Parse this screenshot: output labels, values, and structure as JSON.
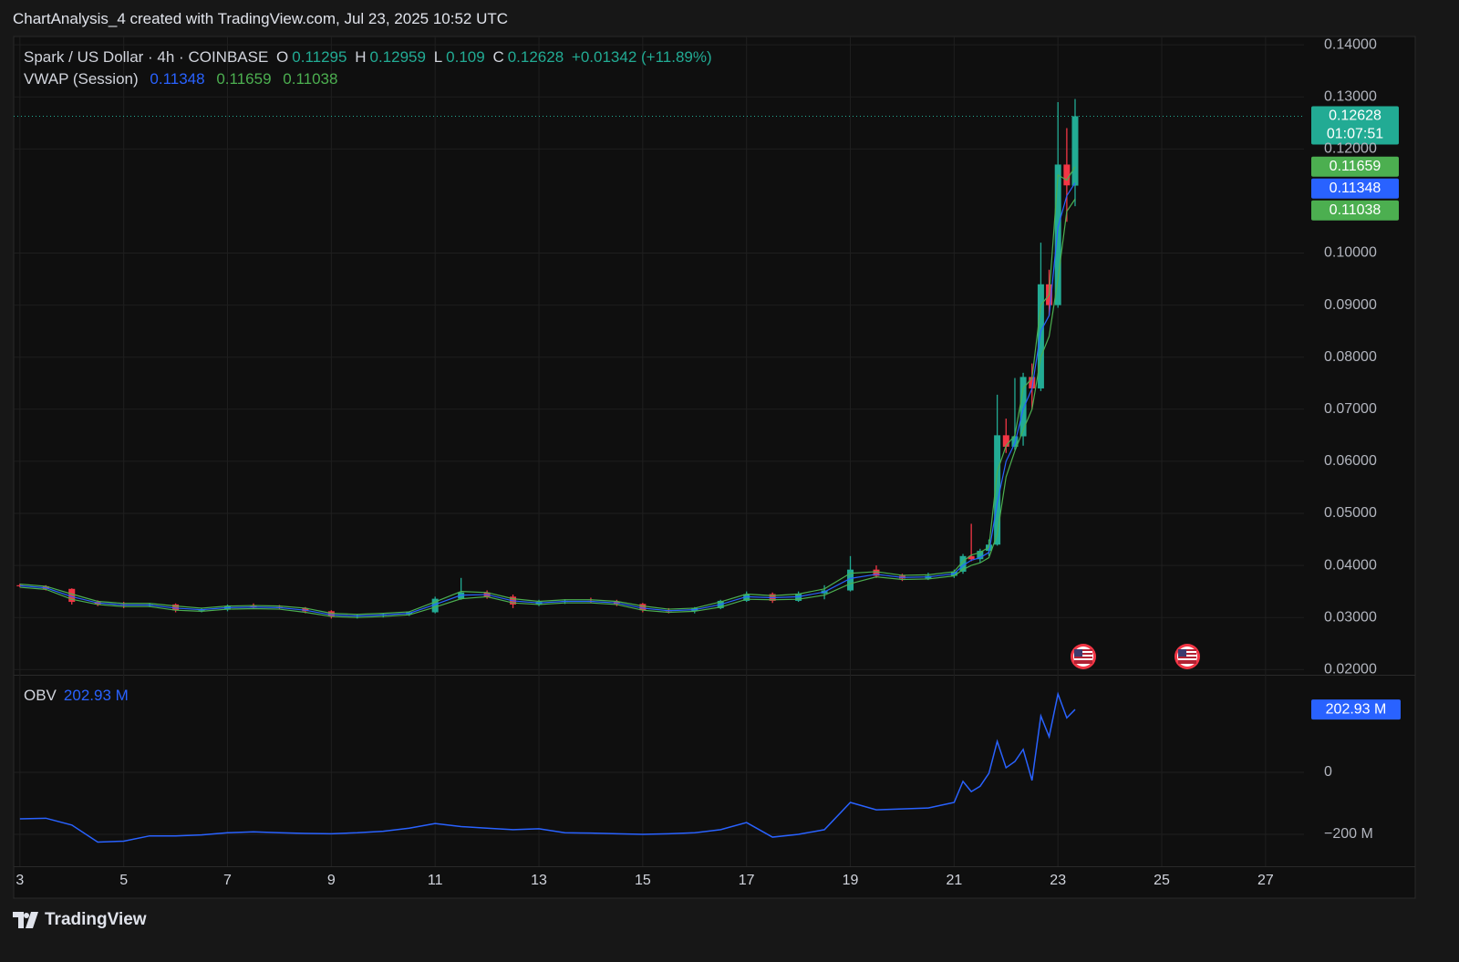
{
  "header": {
    "title": "ChartAnalysis_4 created with TradingView.com, Jul 23, 2025 10:52 UTC"
  },
  "footer": {
    "brand": "TradingView"
  },
  "chart_data": [
    {
      "type": "candlestick",
      "symbol": "Spark / US Dollar · 4h · COINBASE",
      "ohlc_labels": [
        "O",
        "H",
        "L",
        "C"
      ],
      "change": "+0.01342 (+11.89%)",
      "countdown": "01:07:51",
      "up_color": "#22ab94",
      "down_color": "#f23645",
      "x": [
        3,
        3.5,
        4,
        4.5,
        5,
        5.5,
        6,
        6.5,
        7,
        7.5,
        8,
        8.5,
        9,
        9.5,
        10,
        10.5,
        11,
        11.5,
        12,
        12.5,
        13,
        13.5,
        14,
        14.5,
        15,
        15.5,
        16,
        16.5,
        17,
        17.5,
        18,
        18.5,
        19,
        19.5,
        20,
        20.5,
        21,
        21.17,
        21.33,
        21.5,
        21.67,
        21.83,
        22,
        22.17,
        22.33,
        22.5,
        22.67,
        22.83,
        23,
        23.17,
        23.33
      ],
      "open": [
        0.0362,
        0.036,
        0.0355,
        0.033,
        0.0325,
        0.0323,
        0.0325,
        0.0314,
        0.0315,
        0.0322,
        0.032,
        0.0318,
        0.0312,
        0.0302,
        0.0304,
        0.0306,
        0.031,
        0.0336,
        0.0348,
        0.034,
        0.0325,
        0.033,
        0.0332,
        0.033,
        0.0326,
        0.0314,
        0.0312,
        0.0318,
        0.0332,
        0.0345,
        0.0332,
        0.0346,
        0.0352,
        0.0392,
        0.038,
        0.0375,
        0.038,
        0.0388,
        0.0418,
        0.0412,
        0.0428,
        0.044,
        0.065,
        0.0628,
        0.0648,
        0.0762,
        0.074,
        0.094,
        0.09,
        0.117,
        0.11295
      ],
      "high": [
        0.0365,
        0.0362,
        0.0356,
        0.0333,
        0.033,
        0.0328,
        0.0327,
        0.0318,
        0.0325,
        0.0327,
        0.0324,
        0.032,
        0.0314,
        0.0306,
        0.0308,
        0.0312,
        0.034,
        0.0376,
        0.0352,
        0.0344,
        0.0334,
        0.0335,
        0.0338,
        0.0334,
        0.0328,
        0.0318,
        0.032,
        0.0334,
        0.035,
        0.0348,
        0.035,
        0.0362,
        0.0418,
        0.04,
        0.0384,
        0.0386,
        0.0392,
        0.0422,
        0.048,
        0.0432,
        0.045,
        0.0728,
        0.0682,
        0.076,
        0.077,
        0.0788,
        0.102,
        0.0968,
        0.129,
        0.124,
        0.12959
      ],
      "low": [
        0.0358,
        0.0352,
        0.0325,
        0.0322,
        0.0318,
        0.032,
        0.031,
        0.031,
        0.0312,
        0.0318,
        0.0316,
        0.0308,
        0.0298,
        0.0298,
        0.03,
        0.0303,
        0.0308,
        0.0334,
        0.0336,
        0.0318,
        0.0322,
        0.0326,
        0.0328,
        0.0322,
        0.031,
        0.0308,
        0.0308,
        0.0316,
        0.033,
        0.0328,
        0.033,
        0.0335,
        0.035,
        0.0376,
        0.037,
        0.0372,
        0.0376,
        0.0384,
        0.0408,
        0.0406,
        0.0418,
        0.0438,
        0.0616,
        0.0622,
        0.063,
        0.07,
        0.0735,
        0.088,
        0.0895,
        0.106,
        0.109
      ],
      "close": [
        0.036,
        0.0355,
        0.033,
        0.0325,
        0.0323,
        0.0325,
        0.0314,
        0.0315,
        0.0322,
        0.032,
        0.0318,
        0.0312,
        0.0302,
        0.0304,
        0.0306,
        0.031,
        0.0336,
        0.0348,
        0.034,
        0.0325,
        0.033,
        0.0332,
        0.033,
        0.0326,
        0.0314,
        0.0312,
        0.0318,
        0.0332,
        0.0345,
        0.0332,
        0.0346,
        0.0352,
        0.0392,
        0.038,
        0.0375,
        0.038,
        0.0388,
        0.0418,
        0.0412,
        0.0428,
        0.044,
        0.065,
        0.0628,
        0.0648,
        0.0762,
        0.074,
        0.094,
        0.09,
        0.117,
        0.113,
        0.12628
      ],
      "overlay": {
        "name": "VWAP (Session)",
        "series": [
          {
            "color": "#2962ff",
            "values": [
              0.0361,
              0.0357,
              0.034,
              0.0328,
              0.0324,
              0.0324,
              0.0318,
              0.0315,
              0.0319,
              0.032,
              0.0319,
              0.0314,
              0.0305,
              0.0303,
              0.0305,
              0.0308,
              0.0325,
              0.0343,
              0.0344,
              0.0332,
              0.0328,
              0.0331,
              0.0331,
              0.0328,
              0.0318,
              0.0313,
              0.0315,
              0.0325,
              0.034,
              0.0338,
              0.034,
              0.0349,
              0.0375,
              0.0383,
              0.0377,
              0.0378,
              0.0384,
              0.04,
              0.041,
              0.0415,
              0.0425,
              0.052,
              0.06,
              0.0635,
              0.07,
              0.074,
              0.085,
              0.088,
              0.105,
              0.111,
              0.11348
            ]
          },
          {
            "color": "#4caf50",
            "values": [
              0.0364,
              0.036,
              0.0345,
              0.0331,
              0.0327,
              0.0327,
              0.0322,
              0.0318,
              0.0322,
              0.0323,
              0.0322,
              0.0318,
              0.0308,
              0.0306,
              0.0308,
              0.0311,
              0.033,
              0.035,
              0.0348,
              0.0336,
              0.0331,
              0.0334,
              0.0334,
              0.0331,
              0.0322,
              0.0316,
              0.0318,
              0.033,
              0.0345,
              0.0342,
              0.0345,
              0.0355,
              0.0385,
              0.0388,
              0.0381,
              0.0382,
              0.0388,
              0.0408,
              0.042,
              0.0425,
              0.0435,
              0.058,
              0.063,
              0.065,
              0.074,
              0.076,
              0.09,
              0.092,
              0.115,
              0.114,
              0.11659
            ]
          },
          {
            "color": "#4caf50",
            "values": [
              0.0358,
              0.0354,
              0.0335,
              0.0325,
              0.0321,
              0.0321,
              0.0314,
              0.0312,
              0.0316,
              0.0317,
              0.0316,
              0.031,
              0.0302,
              0.03,
              0.0302,
              0.0305,
              0.032,
              0.0336,
              0.034,
              0.0328,
              0.0325,
              0.0328,
              0.0328,
              0.0325,
              0.0314,
              0.031,
              0.0312,
              0.032,
              0.0335,
              0.0334,
              0.0335,
              0.0343,
              0.0365,
              0.0378,
              0.0373,
              0.0374,
              0.038,
              0.0392,
              0.04,
              0.0405,
              0.0415,
              0.046,
              0.057,
              0.062,
              0.066,
              0.07,
              0.08,
              0.084,
              0.095,
              0.108,
              0.11038
            ]
          }
        ]
      },
      "xlim": [
        2.88,
        27.74
      ],
      "xticks": [
        3,
        5,
        7,
        9,
        11,
        13,
        15,
        17,
        19,
        21,
        23,
        25,
        27
      ],
      "ylim": [
        0.019,
        0.1416
      ],
      "yticks": [
        {
          "value": 0.02,
          "label": "0.02000"
        },
        {
          "value": 0.03,
          "label": "0.03000"
        },
        {
          "value": 0.04,
          "label": "0.04000"
        },
        {
          "value": 0.05,
          "label": "0.05000"
        },
        {
          "value": 0.06,
          "label": "0.06000"
        },
        {
          "value": 0.07,
          "label": "0.07000"
        },
        {
          "value": 0.08,
          "label": "0.08000"
        },
        {
          "value": 0.09,
          "label": "0.09000"
        },
        {
          "value": 0.1,
          "label": "0.10000"
        },
        {
          "value": 0.12,
          "label": "0.12000"
        },
        {
          "value": 0.13,
          "label": "0.13000"
        },
        {
          "value": 0.14,
          "label": "0.14000"
        }
      ],
      "grid": true
    },
    {
      "type": "line",
      "title": "OBV",
      "x": [
        3,
        3.5,
        4,
        4.5,
        5,
        5.5,
        6,
        6.5,
        7,
        7.5,
        8,
        8.5,
        9,
        9.5,
        10,
        10.5,
        11,
        11.5,
        12,
        12.5,
        13,
        13.5,
        14,
        14.5,
        15,
        15.5,
        16,
        16.5,
        17,
        17.5,
        18,
        18.5,
        19,
        19.5,
        20,
        20.5,
        21,
        21.17,
        21.33,
        21.5,
        21.67,
        21.83,
        22,
        22.17,
        22.33,
        22.5,
        22.67,
        22.83,
        23,
        23.17,
        23.33
      ],
      "series": [
        {
          "color": "#2962ff",
          "values": [
            -150,
            -148,
            -170,
            -225,
            -222,
            -205,
            -205,
            -202,
            -195,
            -192,
            -195,
            -197,
            -198,
            -195,
            -190,
            -180,
            -165,
            -175,
            -180,
            -185,
            -182,
            -195,
            -196,
            -198,
            -200,
            -198,
            -195,
            -185,
            -162,
            -209,
            -200,
            -185,
            -97,
            -121,
            -118,
            -115,
            -97,
            -29,
            -62,
            -45,
            -3,
            100,
            15,
            35,
            74,
            -26,
            182,
            115,
            253,
            176,
            202.93
          ]
        }
      ],
      "current": {
        "value": 202.93,
        "label": "202.93 M"
      },
      "ylim": [
        -303,
        312
      ],
      "yticks": [
        {
          "value": -200,
          "label": "−200 M"
        },
        0
      ],
      "grid": true
    }
  ]
}
